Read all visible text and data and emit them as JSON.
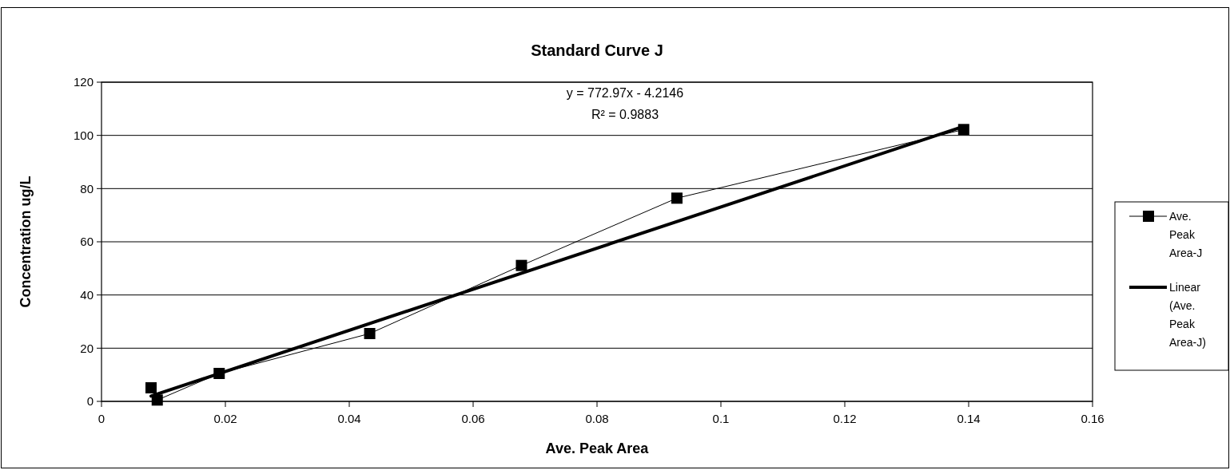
{
  "chart_data": {
    "type": "line",
    "title": "Standard Curve J",
    "xlabel": "Ave. Peak Area",
    "ylabel": "Concentration ug/L",
    "annotations": [
      "y = 772.97x - 4.2146",
      "R² = 0.9883"
    ],
    "xlim": [
      0,
      0.16
    ],
    "xticks": [
      0,
      0.02,
      0.04,
      0.06,
      0.08,
      0.1,
      0.12,
      0.14,
      0.16
    ],
    "ylim": [
      0,
      120
    ],
    "yticks": [
      0,
      20,
      40,
      60,
      80,
      100,
      120
    ],
    "grid": "y",
    "legend": "right",
    "series": [
      {
        "name": "Ave. Peak Area-J",
        "color": "#000000",
        "marker": "square",
        "x": [
          0.008,
          0.009,
          0.019,
          0.0433,
          0.0678,
          0.0929,
          0.1392
        ],
        "values": [
          5.1,
          0.5,
          10.5,
          25.5,
          51.1,
          76.4,
          102.2
        ]
      },
      {
        "name": "Linear (Ave. Peak Area-J)",
        "color": "#000000",
        "marker": "none",
        "x": [
          0.008,
          0.1392
        ],
        "values": [
          1.97,
          103.38
        ]
      }
    ]
  }
}
